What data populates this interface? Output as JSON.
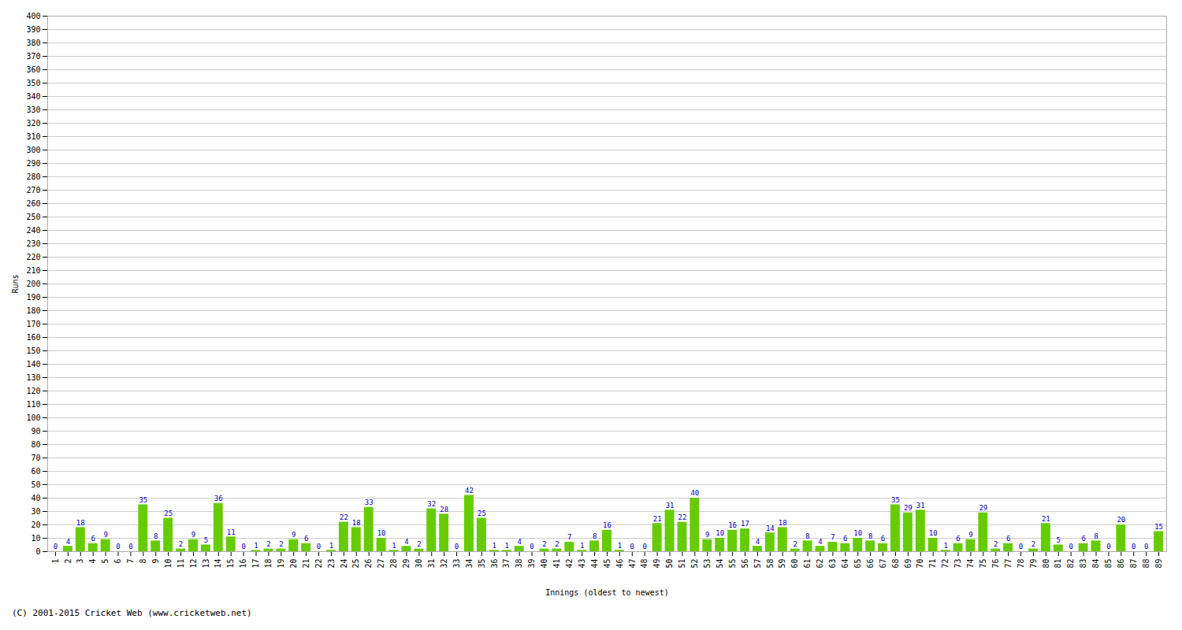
{
  "chart_data": {
    "type": "bar",
    "xlabel": "Innings (oldest to newest)",
    "ylabel": "Runs",
    "categories": [
      1,
      2,
      3,
      4,
      5,
      6,
      7,
      8,
      9,
      10,
      11,
      12,
      13,
      14,
      15,
      16,
      17,
      18,
      19,
      20,
      21,
      22,
      23,
      24,
      25,
      26,
      27,
      28,
      29,
      30,
      31,
      32,
      33,
      34,
      35,
      36,
      37,
      38,
      39,
      40,
      41,
      42,
      43,
      44,
      45,
      46,
      47,
      48,
      49,
      50,
      51,
      52,
      53,
      54,
      55,
      56,
      57,
      58,
      59,
      60,
      61,
      62,
      63,
      64,
      65,
      66,
      67,
      68,
      69,
      70,
      71,
      72,
      73,
      74,
      75,
      76,
      77,
      78,
      79,
      80,
      81,
      82,
      83,
      84,
      85,
      86,
      87,
      88,
      89
    ],
    "values": [
      0,
      4,
      18,
      6,
      9,
      0,
      0,
      35,
      8,
      25,
      2,
      9,
      5,
      36,
      11,
      0,
      1,
      2,
      2,
      9,
      6,
      0,
      1,
      22,
      18,
      33,
      10,
      1,
      4,
      2,
      32,
      28,
      0,
      42,
      25,
      1,
      1,
      4,
      0,
      2,
      2,
      7,
      1,
      8,
      16,
      1,
      0,
      0,
      21,
      31,
      22,
      40,
      9,
      10,
      16,
      17,
      4,
      14,
      18,
      2,
      8,
      4,
      7,
      6,
      10,
      8,
      6,
      35,
      29,
      31,
      10,
      1,
      6,
      9,
      29,
      2,
      6,
      0,
      2,
      21,
      5,
      0,
      6,
      8,
      0,
      20,
      0,
      0,
      15
    ],
    "color": "#66cc00",
    "ylim": [
      0,
      400
    ],
    "yticks": [
      0,
      10,
      20,
      30,
      40,
      50,
      60,
      70,
      80,
      90,
      100,
      110,
      120,
      130,
      140,
      150,
      160,
      170,
      180,
      190,
      200,
      210,
      220,
      230,
      240,
      250,
      260,
      270,
      280,
      290,
      300,
      310,
      320,
      330,
      340,
      350,
      360,
      370,
      380,
      390,
      400
    ],
    "grid": true,
    "data_labels": true,
    "annotations": [
      "(C) 2001-2015 Cricket Web (www.cricketweb.net)"
    ]
  }
}
